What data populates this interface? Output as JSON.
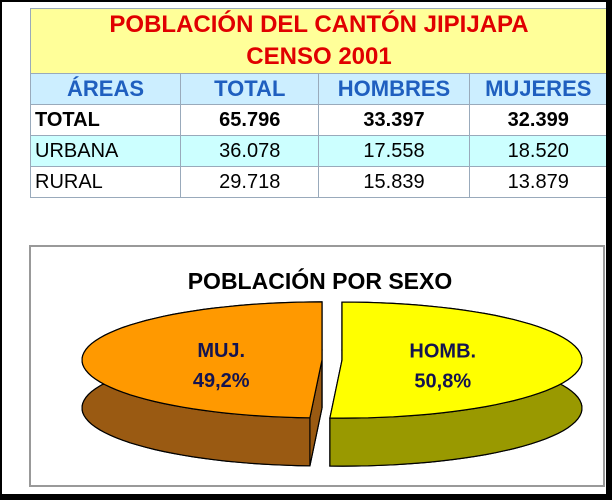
{
  "table": {
    "title": [
      "POBLACIÓN DEL CANTÓN JIPIJAPA",
      "CENSO 2001"
    ],
    "header": [
      "ÁREAS",
      "TOTAL",
      "HOMBRES",
      "MUJERES"
    ],
    "rows": [
      [
        "TOTAL",
        "65.796",
        "33.397",
        "32.399"
      ],
      [
        "URBANA",
        "36.078",
        "17.558",
        "18.520"
      ],
      [
        "RURAL",
        "29.718",
        "15.839",
        "13.879"
      ]
    ]
  },
  "chart_data": {
    "type": "pie",
    "title": "POBLACIÓN POR SEXO",
    "categories": [
      "HOMB.",
      "MUJ."
    ],
    "values": [
      50.8,
      49.2
    ],
    "value_labels": [
      "50,8%",
      "49,2%"
    ],
    "colors": [
      "#ffff00",
      "#ff9900"
    ],
    "side_colors": [
      "#999900",
      "#9a5a12"
    ]
  }
}
